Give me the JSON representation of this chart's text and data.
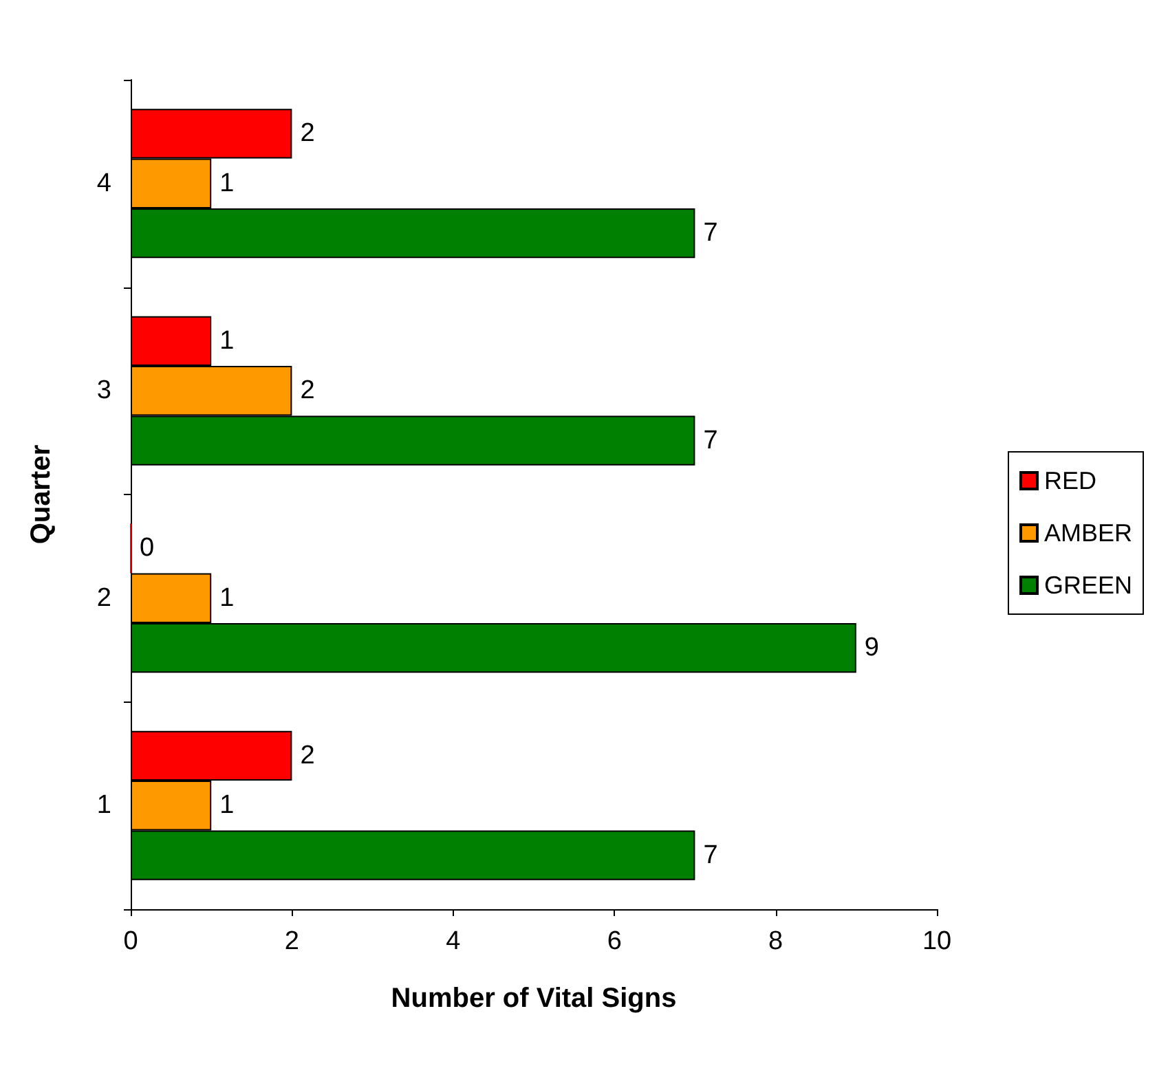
{
  "chart_data": {
    "type": "bar",
    "orientation": "horizontal",
    "xlabel": "Number of Vital Signs",
    "ylabel": "Quarter",
    "categories": [
      "4",
      "3",
      "2",
      "1"
    ],
    "series": [
      {
        "name": "RED",
        "color": "#ff0000",
        "values": [
          2,
          1,
          0,
          2
        ]
      },
      {
        "name": "AMBER",
        "color": "#ff9900",
        "values": [
          1,
          2,
          1,
          1
        ]
      },
      {
        "name": "GREEN",
        "color": "#008000",
        "values": [
          7,
          7,
          9,
          7
        ]
      }
    ],
    "xlim": [
      0,
      10
    ],
    "xticks": [
      0,
      2,
      4,
      6,
      8,
      10
    ],
    "grid": false,
    "legend": "right",
    "data_labels": true
  }
}
